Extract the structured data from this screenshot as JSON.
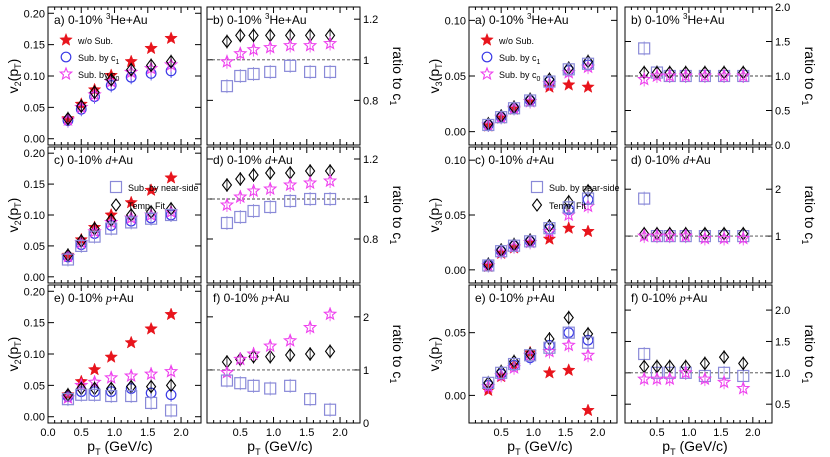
{
  "figure": {
    "xlabel": "p_T (GeV/c)",
    "xticks": [
      "0.0",
      "0.5",
      "1.0",
      "1.5",
      "2.0"
    ],
    "colors": {
      "wo": "#e8141c",
      "c1": "#3a3ae6",
      "c0": "#ee40ee",
      "ns": "#8a8ad8",
      "tf": "#000000",
      "ref": "#444444"
    }
  },
  "chart_data": [
    {
      "id": "v2-he-left",
      "type": "scatter",
      "label": "a) 0-10% ³He+Au",
      "ylabel": "v2(pT)",
      "ylim": [
        -0.01,
        0.21
      ],
      "yticks": [
        "0.00",
        "0.05",
        "0.10",
        "0.15",
        "0.20"
      ],
      "legend": [
        "w/o Sub.",
        "Sub. by c1",
        "Sub. by c0"
      ],
      "x": [
        0.3,
        0.5,
        0.7,
        0.95,
        1.25,
        1.55,
        1.85
      ],
      "series": [
        {
          "name": "w/o Sub.",
          "marker": "star",
          "color": "wo",
          "values": [
            0.032,
            0.055,
            0.078,
            0.101,
            0.123,
            0.144,
            0.16
          ]
        },
        {
          "name": "Sub. by c1",
          "marker": "circle",
          "color": "c1",
          "values": [
            0.029,
            0.047,
            0.067,
            0.085,
            0.098,
            0.104,
            0.108
          ]
        },
        {
          "name": "Sub. by c0",
          "marker": "openstar",
          "color": "c0",
          "values": [
            0.03,
            0.05,
            0.07,
            0.091,
            0.106,
            0.112,
            0.118
          ]
        },
        {
          "name": "Temp. Fit",
          "marker": "diamond",
          "color": "tf",
          "values": [
            0.032,
            0.052,
            0.074,
            0.094,
            0.11,
            0.117,
            0.123
          ]
        }
      ]
    },
    {
      "id": "ratio-he-left",
      "type": "scatter",
      "label": "b) 0-10% ³He+Au",
      "ylabel": "ratio to c1",
      "ylim": [
        0.58,
        1.26
      ],
      "yticks": [
        "0.8",
        "1",
        "1.2"
      ],
      "refline": 1.0,
      "x": [
        0.3,
        0.5,
        0.7,
        0.95,
        1.25,
        1.55,
        1.85
      ],
      "series": [
        {
          "name": "Temp. Fit",
          "marker": "diamond",
          "color": "tf",
          "values": [
            1.09,
            1.12,
            1.12,
            1.12,
            1.12,
            1.12,
            1.12
          ]
        },
        {
          "name": "Sub. by c0",
          "marker": "openstar",
          "color": "c0",
          "values": [
            0.99,
            1.03,
            1.05,
            1.06,
            1.07,
            1.07,
            1.08
          ]
        },
        {
          "name": "Sub. by near-side",
          "marker": "square",
          "color": "ns",
          "values": [
            0.87,
            0.92,
            0.93,
            0.94,
            0.97,
            0.94,
            0.94
          ]
        }
      ]
    },
    {
      "id": "v2-d-left",
      "type": "scatter",
      "label": "c) 0-10% d+Au",
      "ylabel": "v2(pT)",
      "ylim": [
        -0.01,
        0.21
      ],
      "yticks": [
        "0.00",
        "0.05",
        "0.10",
        "0.15",
        "0.20"
      ],
      "legend": [
        "Sub. by near-side",
        "Temp. Fit"
      ],
      "x": [
        0.3,
        0.5,
        0.7,
        0.95,
        1.25,
        1.55,
        1.85
      ],
      "series": [
        {
          "name": "w/o Sub.",
          "marker": "star",
          "color": "wo",
          "values": [
            0.035,
            0.06,
            0.08,
            0.1,
            0.12,
            0.14,
            0.16
          ]
        },
        {
          "name": "Sub. by c1",
          "marker": "circle",
          "color": "c1",
          "values": [
            0.032,
            0.052,
            0.07,
            0.083,
            0.09,
            0.095,
            0.1
          ]
        },
        {
          "name": "Sub. by c0",
          "marker": "openstar",
          "color": "c0",
          "values": [
            0.033,
            0.055,
            0.073,
            0.088,
            0.095,
            0.1,
            0.105
          ]
        },
        {
          "name": "Temp. Fit",
          "marker": "diamond",
          "color": "tf",
          "values": [
            0.035,
            0.058,
            0.078,
            0.092,
            0.1,
            0.105,
            0.11
          ]
        },
        {
          "name": "Sub. by near-side",
          "marker": "square",
          "color": "ns",
          "values": [
            0.028,
            0.05,
            0.065,
            0.078,
            0.088,
            0.094,
            0.1
          ]
        }
      ]
    },
    {
      "id": "ratio-d-left",
      "type": "scatter",
      "label": "d) 0-10% d+Au",
      "ylabel": "ratio to c1",
      "ylim": [
        0.58,
        1.26
      ],
      "yticks": [
        "0.8",
        "1",
        "1.2"
      ],
      "refline": 1.0,
      "x": [
        0.3,
        0.5,
        0.7,
        0.95,
        1.25,
        1.55,
        1.85
      ],
      "series": [
        {
          "name": "Temp. Fit",
          "marker": "diamond",
          "color": "tf",
          "values": [
            1.07,
            1.1,
            1.12,
            1.13,
            1.13,
            1.14,
            1.14
          ]
        },
        {
          "name": "Sub. by c0",
          "marker": "openstar",
          "color": "c0",
          "values": [
            0.97,
            1.01,
            1.04,
            1.05,
            1.07,
            1.08,
            1.09
          ]
        },
        {
          "name": "Sub. by near-side",
          "marker": "square",
          "color": "ns",
          "values": [
            0.88,
            0.91,
            0.94,
            0.96,
            0.99,
            1.0,
            1.0
          ]
        }
      ]
    },
    {
      "id": "v2-p-left",
      "type": "scatter",
      "label": "e) 0-10% p+Au",
      "ylabel": "v2(pT)",
      "ylim": [
        -0.01,
        0.21
      ],
      "yticks": [
        "0.00",
        "0.05",
        "0.10",
        "0.15",
        "0.20"
      ],
      "x": [
        0.3,
        0.5,
        0.7,
        0.95,
        1.25,
        1.55,
        1.85
      ],
      "series": [
        {
          "name": "w/o Sub.",
          "marker": "star",
          "color": "wo",
          "values": [
            0.035,
            0.056,
            0.075,
            0.095,
            0.118,
            0.14,
            0.163
          ]
        },
        {
          "name": "Sub. by c1",
          "marker": "circle",
          "color": "c1",
          "values": [
            0.032,
            0.04,
            0.04,
            0.04,
            0.045,
            0.038,
            0.035
          ]
        },
        {
          "name": "Sub. by c0",
          "marker": "openstar",
          "color": "c0",
          "values": [
            0.03,
            0.05,
            0.055,
            0.062,
            0.065,
            0.068,
            0.072
          ]
        },
        {
          "name": "Temp. Fit",
          "marker": "diamond",
          "color": "tf",
          "values": [
            0.035,
            0.045,
            0.045,
            0.045,
            0.048,
            0.048,
            0.05
          ]
        },
        {
          "name": "Sub. by near-side",
          "marker": "square",
          "color": "ns",
          "values": [
            0.028,
            0.035,
            0.035,
            0.033,
            0.033,
            0.022,
            0.01
          ]
        }
      ]
    },
    {
      "id": "ratio-p-left",
      "type": "scatter",
      "label": "f) 0-10% p+Au",
      "ylabel": "ratio to c1",
      "ylim": [
        0.0,
        2.6
      ],
      "yticks": [
        "0",
        "1",
        "2"
      ],
      "refline": 1.0,
      "x": [
        0.3,
        0.5,
        0.7,
        0.95,
        1.25,
        1.55,
        1.85
      ],
      "series": [
        {
          "name": "Temp. Fit",
          "marker": "diamond",
          "color": "tf",
          "values": [
            1.15,
            1.2,
            1.25,
            1.25,
            1.28,
            1.3,
            1.35
          ]
        },
        {
          "name": "Sub. by c0",
          "marker": "openstar",
          "color": "c0",
          "values": [
            0.95,
            1.2,
            1.3,
            1.45,
            1.55,
            1.8,
            2.05
          ]
        },
        {
          "name": "Sub. by near-side",
          "marker": "square",
          "color": "ns",
          "values": [
            0.8,
            0.75,
            0.7,
            0.65,
            0.7,
            0.45,
            0.25
          ]
        }
      ]
    },
    {
      "id": "v3-he-right",
      "type": "scatter",
      "label": "a) 0-10% ³He+Au",
      "ylabel": "v3(pT)",
      "ylim": [
        -0.012,
        0.112
      ],
      "yticks": [
        "0.00",
        "0.05",
        "0.10"
      ],
      "legend": [
        "w/o Sub.",
        "Sub. by c1",
        "Sub. by c0"
      ],
      "x": [
        0.3,
        0.5,
        0.7,
        0.95,
        1.25,
        1.55,
        1.85
      ],
      "series": [
        {
          "name": "w/o Sub.",
          "marker": "star",
          "color": "wo",
          "values": [
            0.005,
            0.012,
            0.02,
            0.027,
            0.04,
            0.042,
            0.04
          ]
        },
        {
          "name": "Sub. by c1",
          "marker": "circle",
          "color": "c1",
          "values": [
            0.006,
            0.013,
            0.021,
            0.028,
            0.045,
            0.055,
            0.06
          ]
        },
        {
          "name": "Sub. by c0",
          "marker": "openstar",
          "color": "c0",
          "values": [
            0.006,
            0.013,
            0.021,
            0.027,
            0.043,
            0.053,
            0.058
          ]
        },
        {
          "name": "Temp. Fit",
          "marker": "diamond",
          "color": "tf",
          "values": [
            0.007,
            0.014,
            0.022,
            0.029,
            0.047,
            0.057,
            0.063
          ]
        },
        {
          "name": "Sub. by near-side",
          "marker": "square",
          "color": "ns",
          "values": [
            0.006,
            0.013,
            0.021,
            0.028,
            0.045,
            0.056,
            0.061
          ]
        }
      ]
    },
    {
      "id": "ratio3-he-right",
      "type": "scatter",
      "label": "b) 0-10% ³He+Au",
      "ylabel": "ratio to c1",
      "ylim": [
        0.0,
        2.0
      ],
      "yticks": [
        "0.0",
        "0.5",
        "1.0",
        "1.5",
        "2.0"
      ],
      "refline": 1.0,
      "x": [
        0.3,
        0.5,
        0.7,
        0.95,
        1.25,
        1.55,
        1.85
      ],
      "series": [
        {
          "name": "Sub. by near-side",
          "marker": "square",
          "color": "ns",
          "values": [
            1.4,
            1.05,
            1.0,
            1.0,
            1.0,
            1.0,
            1.0
          ]
        },
        {
          "name": "Temp. Fit",
          "marker": "diamond",
          "color": "tf",
          "values": [
            1.05,
            1.05,
            1.05,
            1.05,
            1.05,
            1.05,
            1.05
          ]
        },
        {
          "name": "Sub. by c0",
          "marker": "openstar",
          "color": "c0",
          "values": [
            0.95,
            1.0,
            1.0,
            1.0,
            1.0,
            1.0,
            1.0
          ]
        }
      ]
    },
    {
      "id": "v3-d-right",
      "type": "scatter",
      "label": "c) 0-10% d+Au",
      "ylabel": "v3(pT)",
      "ylim": [
        -0.012,
        0.112
      ],
      "yticks": [
        "0.00",
        "0.05",
        "0.10"
      ],
      "legend": [
        "Sub. by near-side",
        "Temp. Fit"
      ],
      "x": [
        0.3,
        0.5,
        0.7,
        0.95,
        1.25,
        1.55,
        1.85
      ],
      "series": [
        {
          "name": "w/o Sub.",
          "marker": "star",
          "color": "wo",
          "values": [
            0.003,
            0.015,
            0.02,
            0.025,
            0.028,
            0.038,
            0.035
          ]
        },
        {
          "name": "Sub. by c1",
          "marker": "circle",
          "color": "c1",
          "values": [
            0.005,
            0.017,
            0.022,
            0.026,
            0.037,
            0.055,
            0.064
          ]
        },
        {
          "name": "Sub. by c0",
          "marker": "openstar",
          "color": "c0",
          "values": [
            0.004,
            0.016,
            0.021,
            0.025,
            0.035,
            0.05,
            0.058
          ]
        },
        {
          "name": "Temp. Fit",
          "marker": "diamond",
          "color": "tf",
          "values": [
            0.005,
            0.018,
            0.023,
            0.027,
            0.04,
            0.062,
            0.072
          ]
        },
        {
          "name": "Sub. by near-side",
          "marker": "square",
          "color": "ns",
          "values": [
            0.004,
            0.017,
            0.022,
            0.026,
            0.038,
            0.057,
            0.065
          ]
        }
      ]
    },
    {
      "id": "ratio3-d-right",
      "type": "scatter",
      "label": "d) 0-10% d+Au",
      "ylabel": "ratio to c1",
      "ylim": [
        0.0,
        2.9
      ],
      "yticks": [
        "1",
        "2"
      ],
      "refline": 1.0,
      "x": [
        0.3,
        0.5,
        0.7,
        0.95,
        1.25,
        1.55,
        1.85
      ],
      "series": [
        {
          "name": "Sub. by near-side",
          "marker": "square",
          "color": "ns",
          "values": [
            1.8,
            1.0,
            1.0,
            1.0,
            1.0,
            1.0,
            1.0
          ]
        },
        {
          "name": "Temp. Fit",
          "marker": "diamond",
          "color": "tf",
          "values": [
            1.05,
            1.05,
            1.05,
            1.05,
            1.05,
            1.05,
            1.05
          ]
        },
        {
          "name": "Sub. by c0",
          "marker": "openstar",
          "color": "c0",
          "values": [
            1.0,
            1.0,
            1.0,
            1.0,
            0.95,
            0.95,
            0.95
          ]
        }
      ]
    },
    {
      "id": "v3-p-right",
      "type": "scatter",
      "label": "e) 0-10% p+Au",
      "ylabel": "v3(pT)",
      "ylim": [
        -0.022,
        0.088
      ],
      "yticks": [
        "0.00",
        "0.05"
      ],
      "x": [
        0.3,
        0.5,
        0.7,
        0.95,
        1.25,
        1.55,
        1.85
      ],
      "series": [
        {
          "name": "w/o Sub.",
          "marker": "star",
          "color": "wo",
          "values": [
            0.004,
            0.015,
            0.024,
            0.034,
            0.018,
            0.02,
            -0.012
          ]
        },
        {
          "name": "Sub. by c1",
          "marker": "circle",
          "color": "c1",
          "values": [
            0.008,
            0.017,
            0.024,
            0.03,
            0.04,
            0.05,
            0.044
          ]
        },
        {
          "name": "Sub. by c0",
          "marker": "openstar",
          "color": "c0",
          "values": [
            0.007,
            0.016,
            0.022,
            0.032,
            0.035,
            0.04,
            0.032
          ]
        },
        {
          "name": "Temp. Fit",
          "marker": "diamond",
          "color": "tf",
          "values": [
            0.01,
            0.019,
            0.027,
            0.033,
            0.045,
            0.062,
            0.049
          ]
        },
        {
          "name": "Sub. by near-side",
          "marker": "square",
          "color": "ns",
          "values": [
            0.01,
            0.018,
            0.025,
            0.032,
            0.038,
            0.05,
            0.042
          ]
        }
      ]
    },
    {
      "id": "ratio3-p-right",
      "type": "scatter",
      "label": "f) 0-10% p+Au",
      "ylabel": "ratio to c1",
      "ylim": [
        0.2,
        2.4
      ],
      "yticks": [
        "0.5",
        "1.0",
        "1.5",
        "2.0"
      ],
      "refline": 1.0,
      "x": [
        0.3,
        0.5,
        0.7,
        0.95,
        1.25,
        1.55,
        1.85
      ],
      "series": [
        {
          "name": "Sub. by near-side",
          "marker": "square",
          "color": "ns",
          "values": [
            1.3,
            1.0,
            1.0,
            1.0,
            0.95,
            1.0,
            0.95
          ]
        },
        {
          "name": "Temp. Fit",
          "marker": "diamond",
          "color": "tf",
          "values": [
            1.1,
            1.1,
            1.1,
            1.1,
            1.15,
            1.25,
            1.15
          ]
        },
        {
          "name": "Sub. by c0",
          "marker": "openstar",
          "color": "c0",
          "values": [
            0.9,
            0.9,
            0.9,
            1.0,
            0.9,
            0.85,
            0.75
          ]
        }
      ]
    }
  ]
}
